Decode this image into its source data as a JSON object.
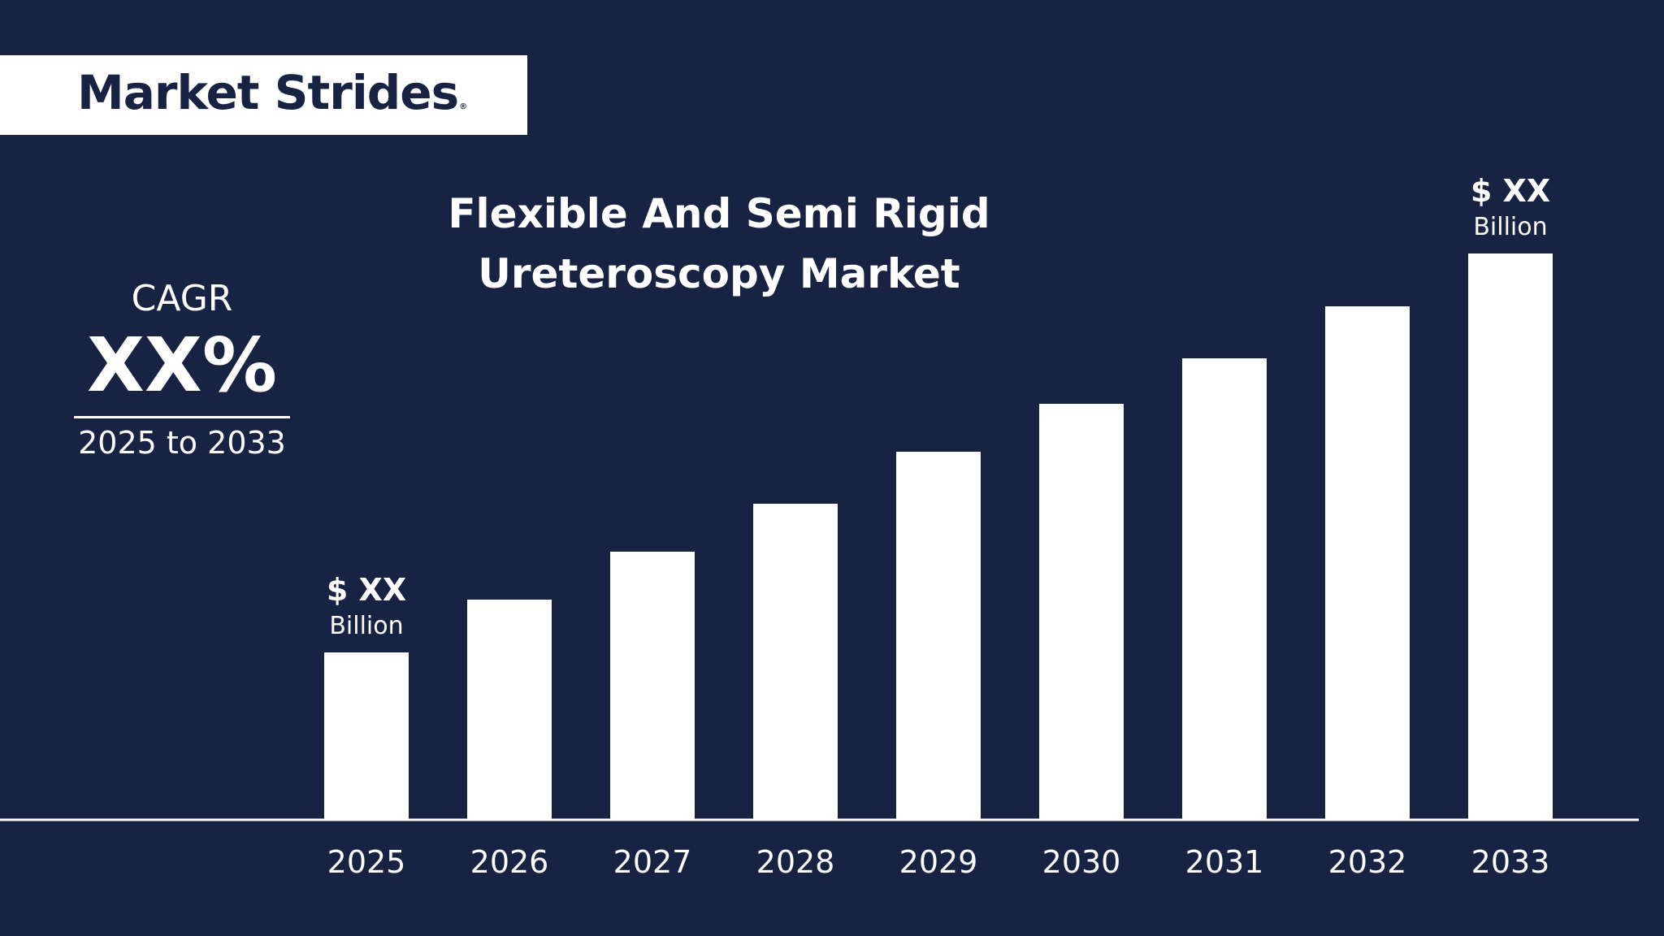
{
  "brand": {
    "name": "Market Strides",
    "reg_mark": "®"
  },
  "colors": {
    "background": "#182242",
    "foreground": "#ffffff"
  },
  "cagr": {
    "label": "CAGR",
    "value": "XX%",
    "range": "2025 to 2033"
  },
  "chart_data": {
    "type": "bar",
    "title": "Flexible And Semi Rigid Ureteroscopy Market",
    "title_lines": [
      "Flexible And Semi Rigid",
      "Ureteroscopy Market"
    ],
    "categories": [
      "2025",
      "2026",
      "2027",
      "2028",
      "2029",
      "2030",
      "2031",
      "2032",
      "2033"
    ],
    "values": [
      205,
      270,
      329,
      388,
      452,
      511,
      567,
      631,
      696
    ],
    "ylim": [
      0,
      750
    ],
    "grid": false,
    "annotations": [
      {
        "category": "2025",
        "value_text": "$ XX",
        "unit_text": "Billion"
      },
      {
        "category": "2033",
        "value_text": "$ XX",
        "unit_text": "Billion"
      }
    ]
  }
}
